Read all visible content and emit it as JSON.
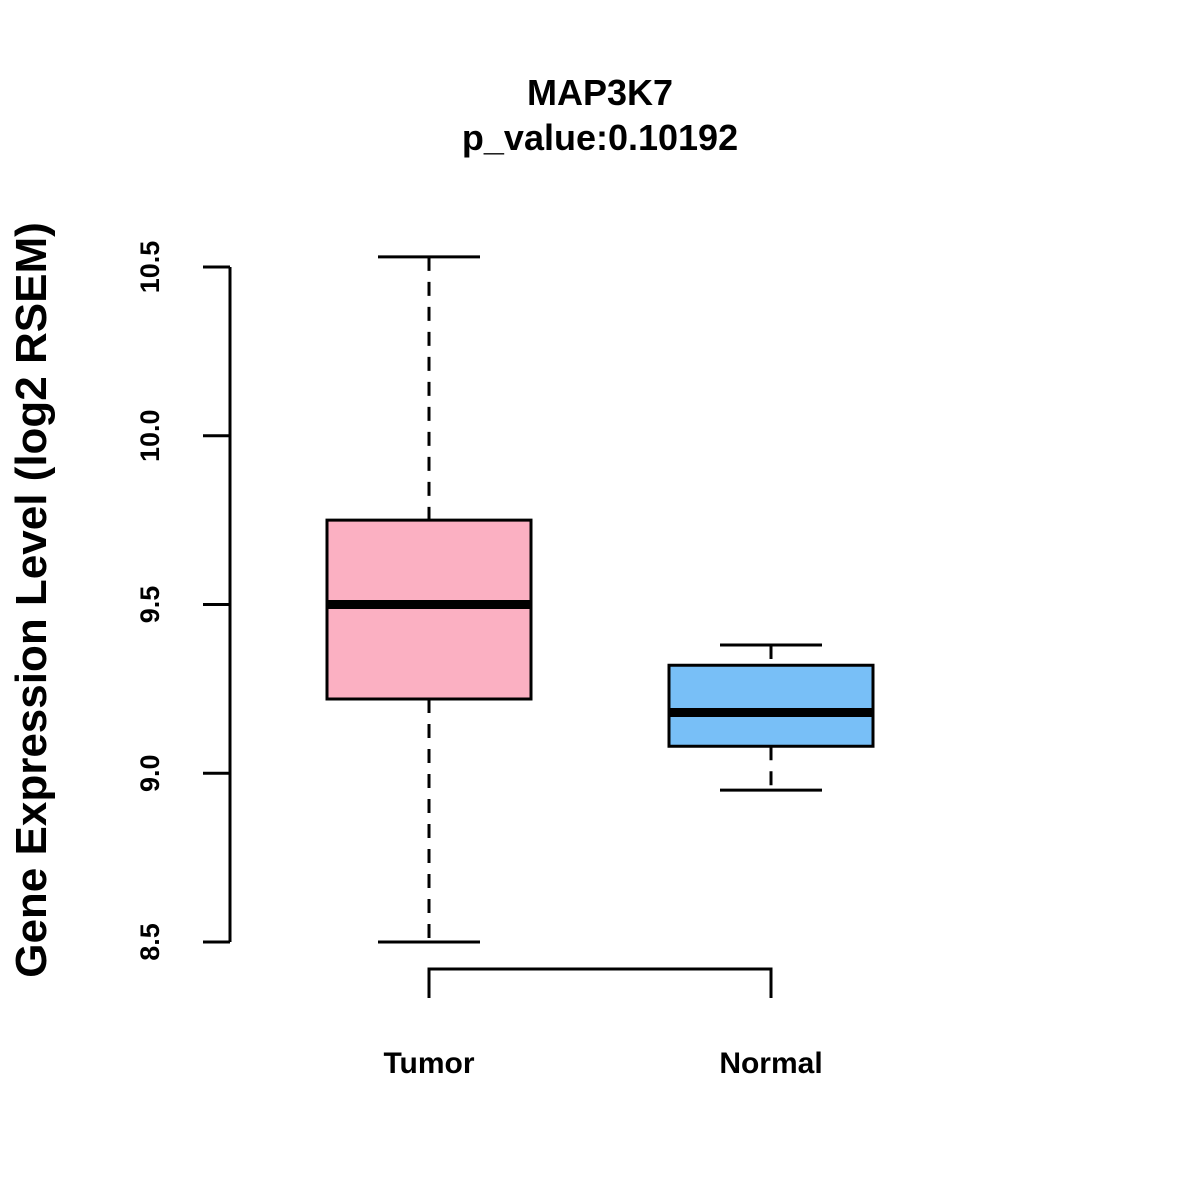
{
  "chart_data": {
    "type": "boxplot",
    "title": "MAP3K7",
    "subtitle": "p_value:0.10192",
    "xlabel": "",
    "ylabel": "Gene Expression Level (log2 RSEM)",
    "ylim": [
      8.5,
      10.5
    ],
    "yticks": [
      "8.5",
      "9.0",
      "9.5",
      "10.0",
      "10.5"
    ],
    "categories": [
      "Tumor",
      "Normal"
    ],
    "boxes": [
      {
        "name": "Tumor",
        "min": 8.5,
        "q1": 9.22,
        "median": 9.5,
        "q3": 9.75,
        "max": 10.53,
        "color": "#FBB0C2"
      },
      {
        "name": "Normal",
        "min": 8.95,
        "q1": 9.08,
        "median": 9.18,
        "q3": 9.32,
        "max": 9.38,
        "color": "#78BFF7"
      }
    ],
    "grid": false,
    "bracket": {
      "from": "Tumor",
      "to": "Normal"
    }
  }
}
